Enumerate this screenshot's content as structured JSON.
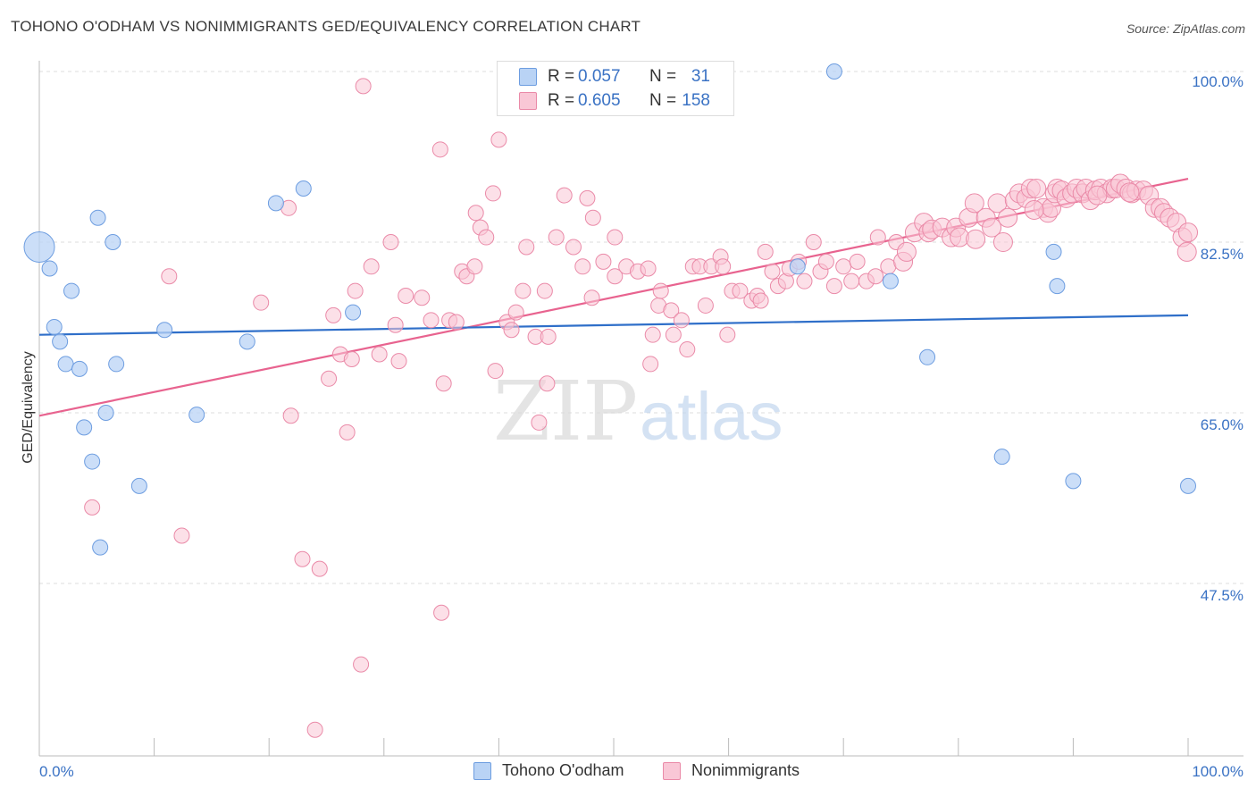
{
  "title": "TOHONO O'ODHAM VS NONIMMIGRANTS GED/EQUIVALENCY CORRELATION CHART",
  "source": "Source: ZipAtlas.com",
  "watermark": {
    "zip": "ZIP",
    "atlas": "atlas"
  },
  "colors": {
    "blue_fill": "#b9d3f5",
    "blue_stroke": "#6d9de0",
    "blue_line": "#2f6fc9",
    "pink_fill": "#f9c7d6",
    "pink_stroke": "#ea8aa8",
    "pink_line": "#e8638f",
    "tick_label": "#3a72c4",
    "grid": "#dddddd"
  },
  "legend": {
    "rows": [
      {
        "r_label": "R =",
        "r_value": "0.057",
        "n_label": "N =",
        "n_value": "31"
      },
      {
        "r_label": "R =",
        "r_value": "0.605",
        "n_label": "N =",
        "n_value": "158"
      }
    ],
    "series_names": [
      "Tohono O'odham",
      "Nonimmigrants"
    ]
  },
  "chart_data": {
    "type": "scatter",
    "title": "TOHONO O'ODHAM VS NONIMMIGRANTS GED/EQUIVALENCY CORRELATION CHART",
    "xlabel": "",
    "ylabel": "GED/Equivalency",
    "xlim": [
      0,
      100
    ],
    "ylim": [
      30,
      102
    ],
    "x_tick_labels": [
      "0.0%",
      "100.0%"
    ],
    "y_ticks": [
      47.5,
      65.0,
      82.5,
      100.0
    ],
    "y_tick_labels": [
      "47.5%",
      "65.0%",
      "82.5%",
      "100.0%"
    ],
    "grid": true,
    "legend_position": "top-center",
    "series": [
      {
        "name": "Tohono O'odham",
        "trend": {
          "x": [
            0,
            100
          ],
          "y": [
            73.0,
            75.0
          ]
        },
        "points": [
          [
            0.0,
            82.0
          ],
          [
            0.9,
            79.8
          ],
          [
            1.3,
            73.8
          ],
          [
            1.8,
            72.3
          ],
          [
            2.3,
            70.0
          ],
          [
            2.8,
            77.5
          ],
          [
            3.5,
            69.5
          ],
          [
            3.9,
            63.5
          ],
          [
            4.6,
            60.0
          ],
          [
            5.1,
            85.0
          ],
          [
            5.3,
            51.2
          ],
          [
            5.8,
            65.0
          ],
          [
            6.4,
            82.5
          ],
          [
            6.7,
            70.0
          ],
          [
            8.7,
            57.5
          ],
          [
            10.9,
            73.5
          ],
          [
            13.7,
            64.8
          ],
          [
            18.1,
            72.3
          ],
          [
            20.6,
            86.5
          ],
          [
            23.0,
            88.0
          ],
          [
            27.3,
            75.3
          ],
          [
            47.8,
            100.0
          ],
          [
            69.2,
            100.0
          ],
          [
            66.0,
            80.0
          ],
          [
            74.1,
            78.5
          ],
          [
            77.3,
            70.7
          ],
          [
            83.8,
            60.5
          ],
          [
            88.3,
            81.5
          ],
          [
            88.6,
            78.0
          ],
          [
            90.0,
            58.0
          ],
          [
            100.0,
            57.5
          ]
        ]
      },
      {
        "name": "Nonimmigrants",
        "trend": {
          "x": [
            0,
            100
          ],
          "y": [
            64.7,
            89.0
          ]
        },
        "points": [
          [
            4.6,
            55.3
          ],
          [
            11.3,
            79.0
          ],
          [
            12.4,
            52.4
          ],
          [
            19.3,
            76.3
          ],
          [
            21.7,
            86.0
          ],
          [
            21.9,
            64.7
          ],
          [
            22.9,
            50.0
          ],
          [
            24.0,
            32.5
          ],
          [
            24.4,
            49.0
          ],
          [
            25.2,
            68.5
          ],
          [
            25.6,
            75.0
          ],
          [
            26.2,
            71.0
          ],
          [
            26.8,
            63.0
          ],
          [
            27.2,
            70.5
          ],
          [
            27.5,
            77.5
          ],
          [
            28.0,
            39.2
          ],
          [
            28.2,
            98.5
          ],
          [
            28.9,
            80.0
          ],
          [
            29.6,
            71.0
          ],
          [
            30.6,
            82.5
          ],
          [
            31.0,
            74.0
          ],
          [
            31.3,
            70.3
          ],
          [
            31.9,
            77.0
          ],
          [
            33.3,
            76.8
          ],
          [
            34.1,
            74.5
          ],
          [
            34.9,
            92.0
          ],
          [
            35.0,
            44.5
          ],
          [
            35.2,
            68.0
          ],
          [
            35.7,
            74.5
          ],
          [
            36.3,
            74.3
          ],
          [
            36.8,
            79.5
          ],
          [
            37.2,
            79.0
          ],
          [
            37.9,
            80.0
          ],
          [
            38.0,
            85.5
          ],
          [
            38.4,
            84.0
          ],
          [
            38.9,
            83.0
          ],
          [
            39.5,
            87.5
          ],
          [
            39.7,
            69.3
          ],
          [
            40.0,
            93.0
          ],
          [
            40.7,
            74.3
          ],
          [
            41.1,
            73.5
          ],
          [
            41.5,
            75.3
          ],
          [
            42.1,
            77.5
          ],
          [
            42.4,
            82.0
          ],
          [
            43.2,
            72.8
          ],
          [
            43.5,
            64.0
          ],
          [
            44.0,
            77.5
          ],
          [
            44.2,
            68.0
          ],
          [
            44.3,
            72.8
          ],
          [
            45.0,
            83.0
          ],
          [
            45.7,
            87.3
          ],
          [
            46.5,
            82.0
          ],
          [
            47.3,
            80.0
          ],
          [
            47.7,
            87.0
          ],
          [
            48.1,
            76.8
          ],
          [
            48.2,
            85.0
          ],
          [
            49.1,
            80.5
          ],
          [
            50.1,
            83.0
          ],
          [
            50.1,
            79.0
          ],
          [
            51.1,
            80.0
          ],
          [
            52.1,
            79.5
          ],
          [
            53.0,
            79.8
          ],
          [
            53.2,
            70.0
          ],
          [
            53.4,
            73.0
          ],
          [
            53.9,
            76.0
          ],
          [
            54.1,
            77.5
          ],
          [
            55.0,
            75.5
          ],
          [
            55.2,
            73.0
          ],
          [
            55.9,
            74.5
          ],
          [
            56.4,
            71.5
          ],
          [
            56.9,
            80.0
          ],
          [
            57.5,
            80.0
          ],
          [
            58.0,
            76.0
          ],
          [
            58.5,
            80.0
          ],
          [
            59.3,
            81.0
          ],
          [
            59.5,
            80.0
          ],
          [
            59.9,
            73.0
          ],
          [
            60.3,
            77.5
          ],
          [
            61.0,
            77.5
          ],
          [
            62.0,
            76.5
          ],
          [
            62.5,
            77.0
          ],
          [
            62.8,
            76.5
          ],
          [
            63.2,
            81.5
          ],
          [
            63.8,
            79.5
          ],
          [
            64.3,
            78.0
          ],
          [
            65.0,
            78.5
          ],
          [
            65.3,
            79.8
          ],
          [
            66.1,
            80.5
          ],
          [
            66.6,
            78.5
          ],
          [
            67.4,
            82.5
          ],
          [
            68.0,
            79.5
          ],
          [
            68.5,
            80.5
          ],
          [
            69.2,
            78.0
          ],
          [
            70.0,
            80.0
          ],
          [
            70.7,
            78.5
          ],
          [
            71.2,
            80.5
          ],
          [
            72.0,
            78.5
          ],
          [
            72.8,
            79.0
          ],
          [
            73.0,
            83.0
          ],
          [
            73.9,
            80.0
          ],
          [
            74.6,
            82.5
          ],
          [
            75.2,
            80.5
          ],
          [
            75.5,
            81.5
          ],
          [
            76.2,
            83.5
          ],
          [
            77.0,
            84.5
          ],
          [
            77.4,
            83.5
          ],
          [
            77.7,
            83.8
          ],
          [
            78.6,
            84.0
          ],
          [
            79.4,
            83.0
          ],
          [
            79.8,
            84.0
          ],
          [
            80.1,
            83.0
          ],
          [
            80.9,
            85.0
          ],
          [
            81.4,
            86.5
          ],
          [
            81.5,
            82.8
          ],
          [
            82.4,
            85.0
          ],
          [
            82.9,
            84.0
          ],
          [
            83.4,
            86.5
          ],
          [
            84.3,
            85.0
          ],
          [
            84.9,
            86.8
          ],
          [
            85.3,
            87.5
          ],
          [
            85.9,
            87.0
          ],
          [
            86.3,
            88.0
          ],
          [
            86.8,
            88.0
          ],
          [
            87.4,
            86.0
          ],
          [
            87.8,
            85.5
          ],
          [
            88.1,
            86.0
          ],
          [
            88.4,
            87.5
          ],
          [
            88.6,
            88.0
          ],
          [
            89.0,
            87.8
          ],
          [
            89.4,
            87.0
          ],
          [
            89.9,
            87.5
          ],
          [
            90.3,
            88.0
          ],
          [
            90.8,
            87.5
          ],
          [
            91.1,
            88.0
          ],
          [
            91.5,
            86.8
          ],
          [
            91.9,
            87.8
          ],
          [
            92.4,
            88.0
          ],
          [
            92.9,
            87.5
          ],
          [
            93.4,
            88.0
          ],
          [
            93.7,
            88.0
          ],
          [
            94.1,
            88.5
          ],
          [
            94.6,
            88.0
          ],
          [
            95.1,
            87.5
          ],
          [
            95.5,
            87.8
          ],
          [
            96.1,
            87.8
          ],
          [
            96.6,
            87.3
          ],
          [
            97.1,
            86.0
          ],
          [
            97.6,
            86.0
          ],
          [
            97.9,
            85.5
          ],
          [
            98.4,
            85.0
          ],
          [
            99.0,
            84.5
          ],
          [
            99.5,
            83.0
          ],
          [
            99.9,
            81.5
          ],
          [
            100.0,
            83.5
          ],
          [
            83.9,
            82.5
          ],
          [
            86.6,
            85.8
          ],
          [
            92.1,
            87.3
          ],
          [
            94.9,
            87.6
          ]
        ]
      }
    ]
  }
}
